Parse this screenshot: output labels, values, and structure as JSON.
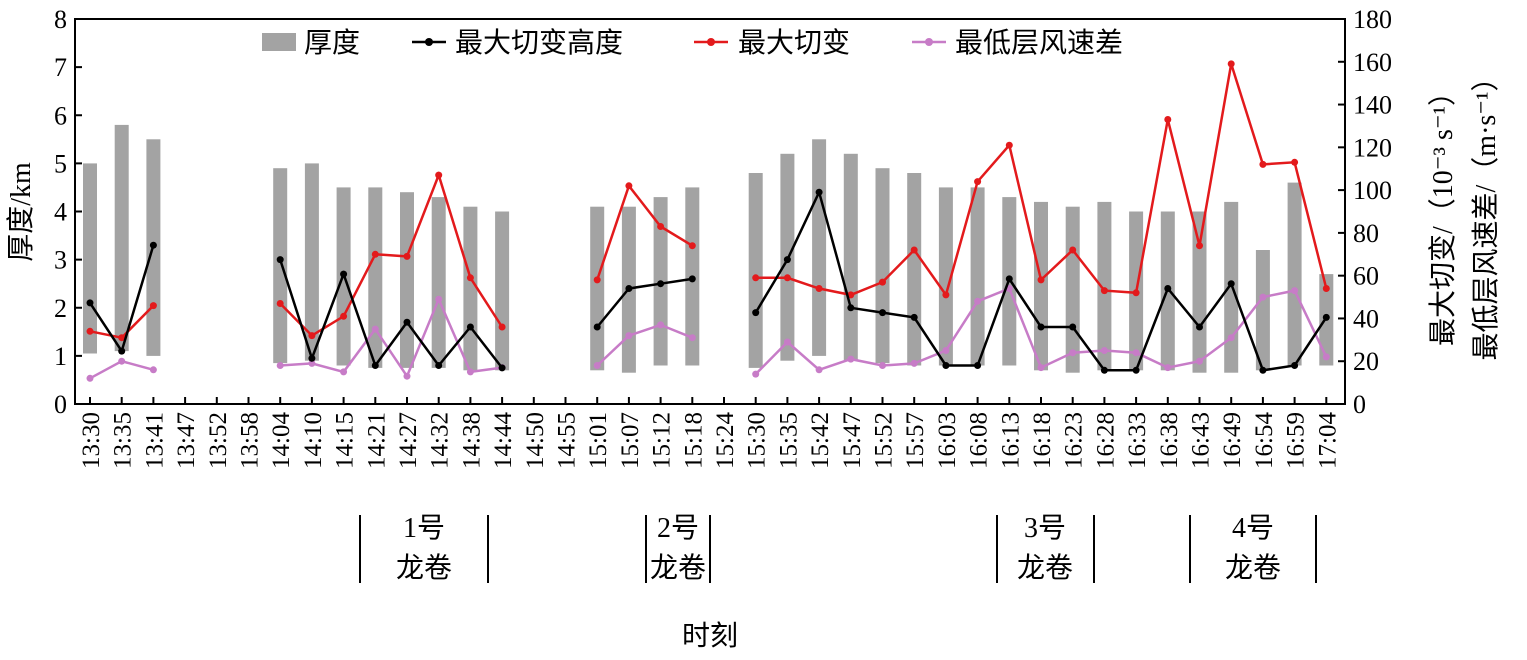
{
  "chart_data": {
    "type": "bar+line",
    "title": "",
    "xlabel": "时刻",
    "ylabel_left": "厚度/km",
    "ylabel_right_1": "最大切变/（10⁻³ s⁻¹）",
    "ylabel_right_2": "最低层风速差/（m·s⁻¹）",
    "ylim_left": [
      0,
      8
    ],
    "yticks_left": [
      "0",
      "1",
      "2",
      "3",
      "4",
      "5",
      "6",
      "7",
      "8"
    ],
    "ylim_right": [
      0,
      180
    ],
    "yticks_right": [
      "0",
      "20",
      "40",
      "60",
      "80",
      "100",
      "120",
      "140",
      "160",
      "180"
    ],
    "legend_position": "top",
    "grid": false,
    "categories": [
      "13:30",
      "13:35",
      "13:41",
      "13:47",
      "13:52",
      "13:58",
      "14:04",
      "14:10",
      "14:15",
      "14:21",
      "14:27",
      "14:32",
      "14:38",
      "14:44",
      "14:50",
      "14:55",
      "15:01",
      "15:07",
      "15:12",
      "15:18",
      "15:24",
      "15:30",
      "15:35",
      "15:42",
      "15:47",
      "15:52",
      "15:57",
      "16:03",
      "16:08",
      "16:13",
      "16:18",
      "16:23",
      "16:28",
      "16:33",
      "16:38",
      "16:43",
      "16:49",
      "16:54",
      "16:59",
      "17:04"
    ],
    "series": [
      {
        "name": "厚度",
        "type": "bar",
        "axis": "left",
        "color": "#a3a3a3",
        "bottom": [
          1.05,
          1.1,
          1.0,
          null,
          null,
          null,
          0.85,
          0.9,
          0.8,
          0.75,
          0.75,
          0.75,
          0.7,
          0.7,
          null,
          null,
          0.7,
          0.65,
          0.8,
          0.8,
          null,
          0.75,
          0.9,
          1.0,
          0.9,
          0.85,
          0.8,
          0.8,
          0.8,
          0.8,
          0.7,
          0.65,
          0.7,
          0.7,
          0.7,
          0.65,
          0.65,
          0.7,
          0.8,
          0.8
        ],
        "top": [
          5.0,
          5.8,
          5.5,
          null,
          null,
          null,
          4.9,
          5.0,
          4.5,
          4.5,
          4.4,
          4.3,
          4.1,
          4.0,
          null,
          null,
          4.1,
          4.1,
          4.3,
          4.5,
          null,
          4.8,
          5.2,
          5.5,
          5.2,
          4.9,
          4.8,
          4.5,
          4.5,
          4.3,
          4.2,
          4.1,
          4.2,
          4.0,
          4.0,
          4.0,
          4.2,
          3.2,
          4.6,
          2.7
        ]
      },
      {
        "name": "最大切变高度",
        "type": "line",
        "axis": "left",
        "color": "#000000",
        "values": [
          2.1,
          1.1,
          3.3,
          null,
          null,
          null,
          3.0,
          0.95,
          2.7,
          0.8,
          1.7,
          0.8,
          1.6,
          0.75,
          null,
          null,
          1.6,
          2.4,
          2.5,
          2.6,
          null,
          1.9,
          3.0,
          4.4,
          2.0,
          1.9,
          1.8,
          0.8,
          0.8,
          2.6,
          1.6,
          1.6,
          0.7,
          0.7,
          2.4,
          1.6,
          2.5,
          0.7,
          0.8,
          1.8
        ]
      },
      {
        "name": "最大切变",
        "type": "line",
        "axis": "right",
        "color": "#e31a1c",
        "values": [
          34,
          31,
          46,
          null,
          null,
          null,
          47,
          32,
          41,
          70,
          69,
          107,
          59,
          36,
          null,
          null,
          58,
          102,
          83,
          74,
          null,
          59,
          59,
          54,
          51,
          57,
          72,
          51,
          104,
          121,
          58,
          72,
          53,
          52,
          133,
          74,
          159,
          112,
          113,
          54
        ]
      },
      {
        "name": "最低层风速差",
        "type": "line",
        "axis": "right",
        "color": "#c77cc7",
        "values": [
          12,
          20,
          16,
          null,
          null,
          null,
          18,
          19,
          15,
          35,
          13,
          49,
          15,
          17,
          null,
          null,
          18,
          32,
          37,
          31,
          null,
          14,
          29,
          16,
          21,
          18,
          19,
          25,
          48,
          54,
          17,
          24,
          25,
          24,
          17,
          20,
          31,
          50,
          53,
          22
        ]
      }
    ],
    "annotations": [
      {
        "text_num": "1号",
        "text_name": "龙卷"
      },
      {
        "text_num": "2号",
        "text_name": "龙卷"
      },
      {
        "text_num": "3号",
        "text_name": "龙卷"
      },
      {
        "text_num": "4号",
        "text_name": "龙卷"
      }
    ]
  }
}
